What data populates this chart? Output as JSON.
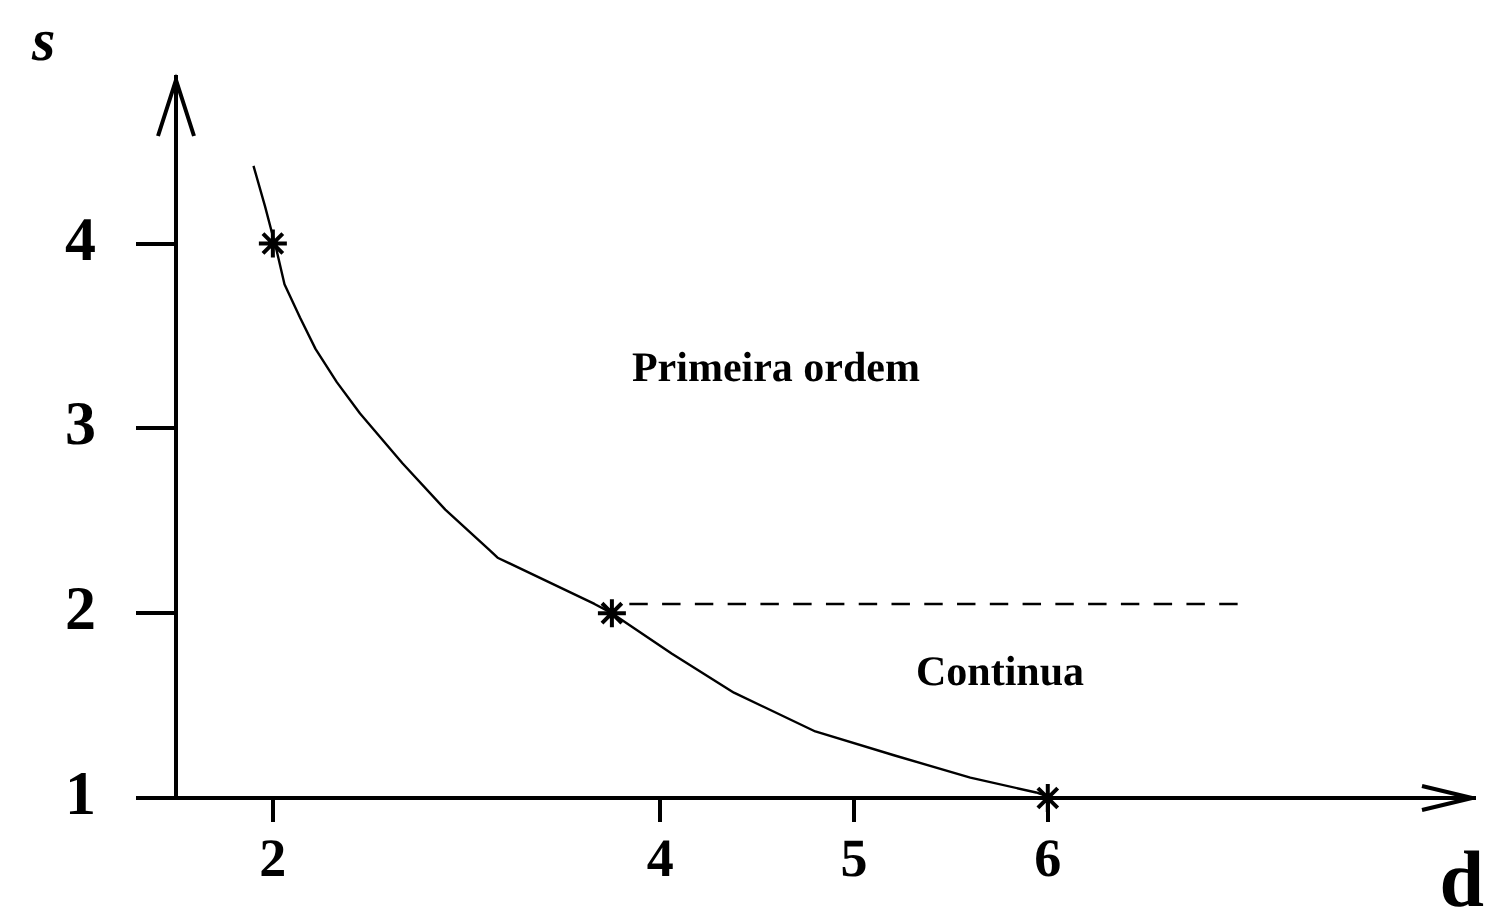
{
  "chart_data": {
    "type": "line",
    "xlabel": "d",
    "ylabel": "s",
    "xlim": [
      1.5,
      8.2
    ],
    "ylim": [
      1,
      4.9
    ],
    "xticks": [
      2,
      4,
      5,
      6
    ],
    "yticks": [
      1,
      2,
      3,
      4
    ],
    "series": [
      {
        "color": "#000000",
        "marker": "none",
        "line_style": "solid",
        "x": [
          1.9,
          1.96,
          2.02,
          2.06,
          2.14,
          2.22,
          2.33,
          2.45,
          2.67,
          2.89,
          3.12,
          3.16,
          3.66,
          3.75,
          4.06,
          4.38,
          4.8,
          5.21,
          5.6,
          5.94,
          6.02,
          6.24
        ],
        "values": [
          4.42,
          4.2,
          3.96,
          3.78,
          3.6,
          3.43,
          3.25,
          3.08,
          2.81,
          2.56,
          2.34,
          2.3,
          2.05,
          2.0,
          1.78,
          1.57,
          1.36,
          1.23,
          1.11,
          1.03,
          1.0,
          1.0
        ]
      },
      {
        "color": "#000000",
        "marker": "none",
        "line_style": "dashed",
        "x": [
          3.84,
          6.98
        ],
        "values": [
          2.05,
          2.05
        ]
      },
      {
        "type": "scatter",
        "color": "#000000",
        "marker": "cross",
        "x": [
          2,
          3.75,
          6
        ],
        "values": [
          4,
          2,
          1
        ]
      }
    ],
    "annotations": [
      "Primeira ordem",
      "Continua"
    ]
  }
}
